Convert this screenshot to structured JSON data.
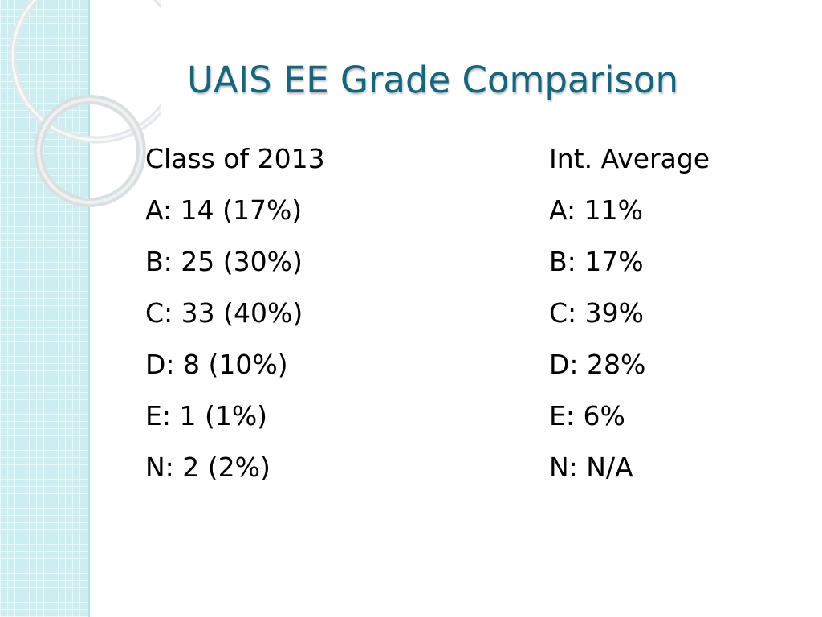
{
  "title": "UAIS EE Grade Comparison",
  "left_column": {
    "heading": "Class of 2013",
    "rows": [
      "A: 14 (17%)",
      "B: 25 (30%)",
      "C: 33 (40%)",
      "D: 8 (10%)",
      "E: 1 (1%)",
      "N: 2 (2%)"
    ]
  },
  "right_column": {
    "heading": "Int.  Average",
    "rows": [
      "A: 11%",
      "B: 17%",
      "C: 39%",
      "D: 28%",
      "E: 6%",
      "N: N/A"
    ]
  },
  "colors": {
    "title": "#17657c",
    "strip": "#cdeef0",
    "ring": "#dfe4e6"
  }
}
